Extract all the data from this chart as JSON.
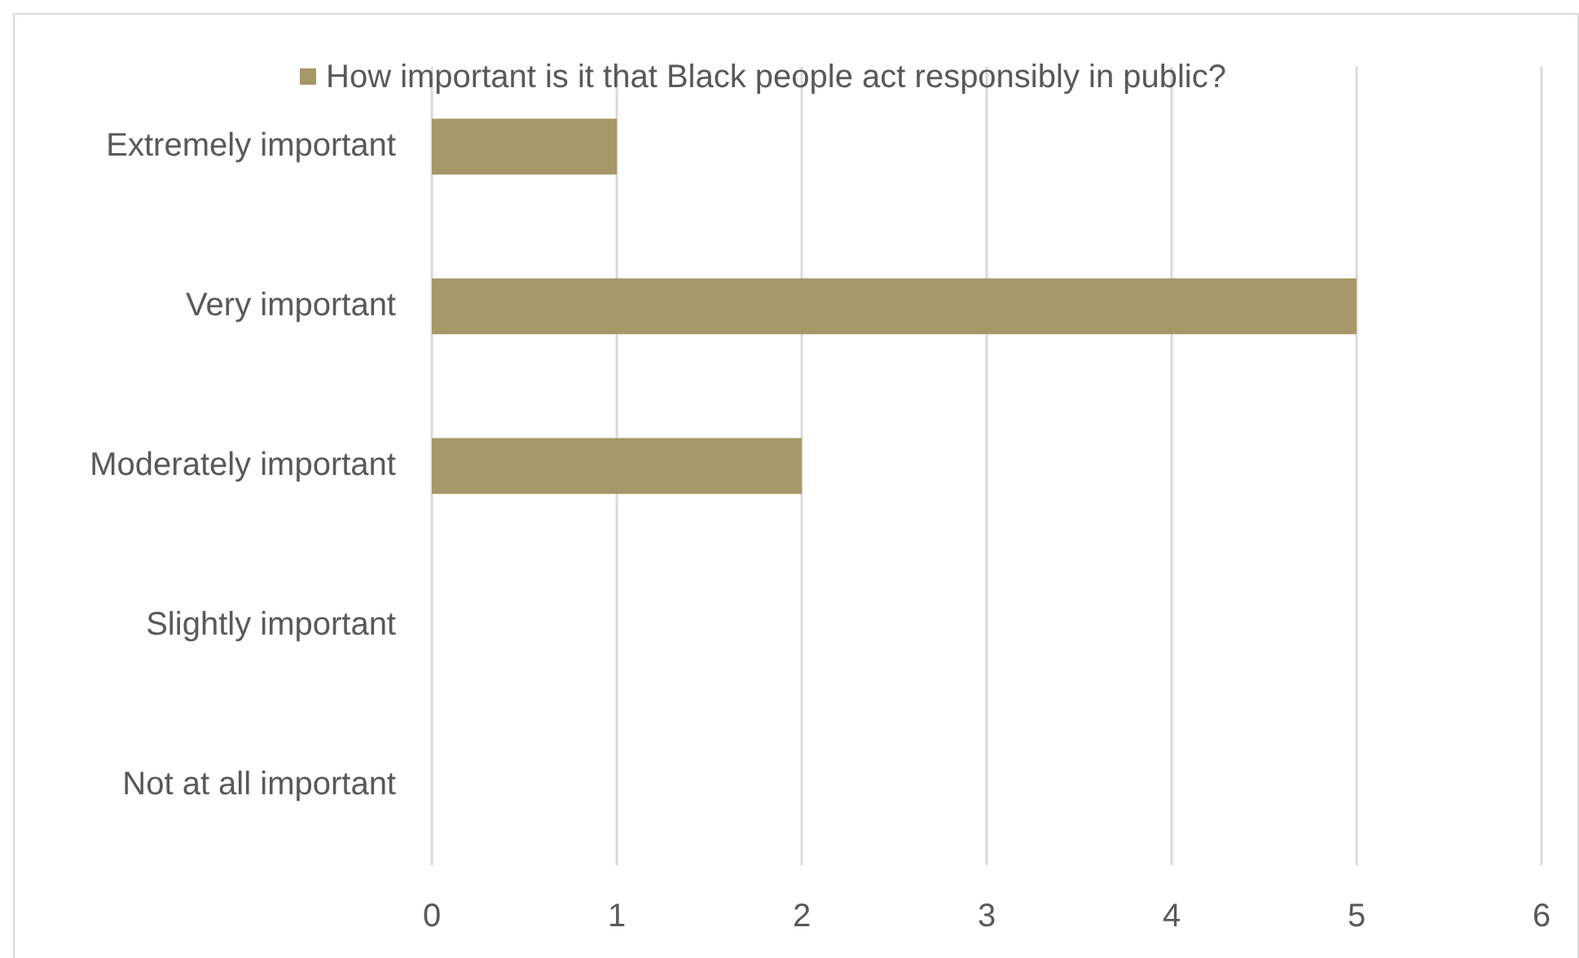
{
  "chart_data": {
    "type": "bar",
    "orientation": "horizontal",
    "categories": [
      "Extremely important",
      "Very important",
      "Moderately important",
      "Slightly important",
      "Not at all important"
    ],
    "series": [
      {
        "name": "How important is it that Black people act responsibly in public?",
        "color": "#a69769",
        "values": [
          1,
          5,
          2,
          0,
          0
        ]
      }
    ],
    "xlim": [
      0,
      6
    ],
    "xticks": [
      0,
      1,
      2,
      3,
      4,
      5,
      6
    ],
    "grid": "x",
    "legend": "top"
  }
}
